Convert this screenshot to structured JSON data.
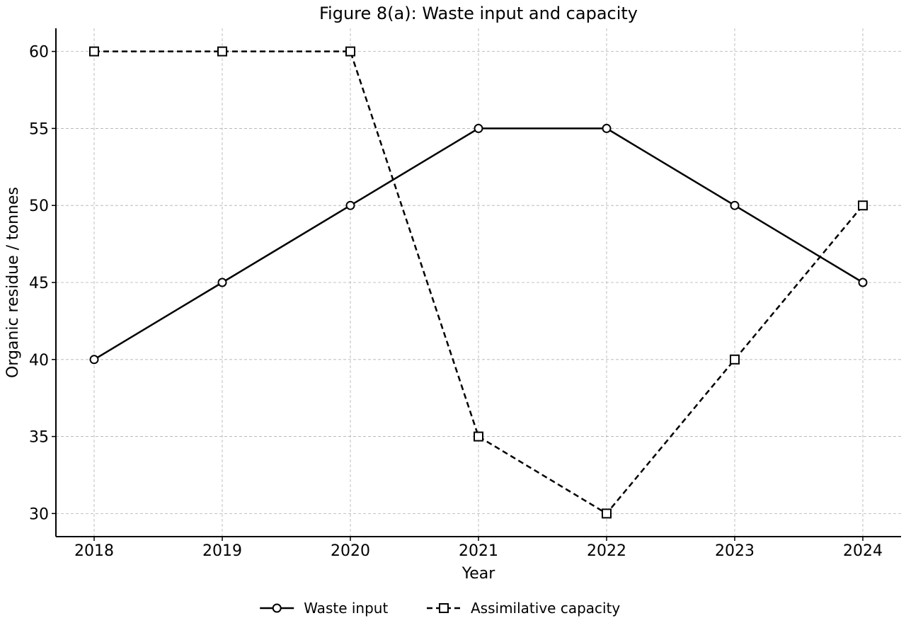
{
  "chart_data": {
    "type": "line",
    "title": "Figure 8(a): Waste input and capacity",
    "xlabel": "Year",
    "ylabel": "Organic residue / tonnes",
    "x": [
      "2018",
      "2019",
      "2020",
      "2021",
      "2022",
      "2023",
      "2024"
    ],
    "yticks": [
      30,
      35,
      40,
      45,
      50,
      55,
      60
    ],
    "ylim": [
      28.5,
      61.5
    ],
    "grid": true,
    "legend_position": "bottom-center",
    "series": [
      {
        "name": "Waste input",
        "values": [
          40,
          45,
          50,
          55,
          55,
          50,
          45
        ],
        "line_style": "solid",
        "marker": "circle",
        "color": "#000000"
      },
      {
        "name": "Assimilative capacity",
        "values": [
          60,
          60,
          60,
          35,
          30,
          40,
          50
        ],
        "line_style": "dashed",
        "marker": "square",
        "color": "#000000"
      }
    ]
  }
}
